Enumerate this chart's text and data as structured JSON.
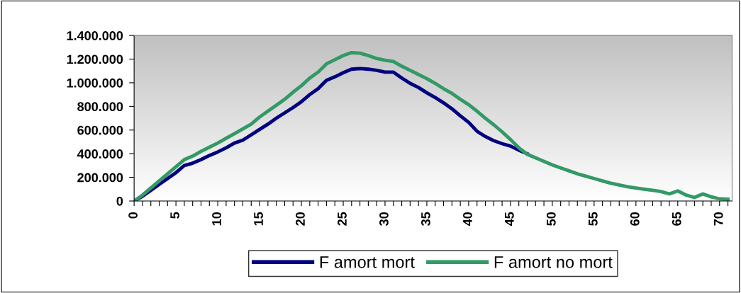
{
  "chart_data": {
    "type": "line",
    "x": [
      0,
      1,
      2,
      3,
      4,
      5,
      6,
      7,
      8,
      9,
      10,
      11,
      12,
      13,
      14,
      15,
      16,
      17,
      18,
      19,
      20,
      21,
      22,
      23,
      24,
      25,
      26,
      27,
      28,
      29,
      30,
      31,
      32,
      33,
      34,
      35,
      36,
      37,
      38,
      39,
      40,
      41,
      42,
      43,
      44,
      45,
      46,
      47,
      48,
      49,
      50,
      51,
      52,
      53,
      54,
      55,
      56,
      57,
      58,
      59,
      60,
      61,
      62,
      63,
      64,
      65,
      66,
      67,
      68,
      69,
      70,
      71
    ],
    "series": [
      {
        "name": "F amort mort",
        "color": "#000080",
        "values": [
          0,
          40000,
          90000,
          140000,
          190000,
          240000,
          300000,
          320000,
          350000,
          385000,
          415000,
          450000,
          490000,
          515000,
          560000,
          605000,
          650000,
          700000,
          745000,
          790000,
          840000,
          900000,
          950000,
          1020000,
          1050000,
          1085000,
          1115000,
          1120000,
          1115000,
          1105000,
          1090000,
          1090000,
          1040000,
          995000,
          960000,
          915000,
          875000,
          830000,
          780000,
          720000,
          665000,
          590000,
          545000,
          510000,
          485000,
          465000,
          430000,
          400000,
          null,
          null,
          null,
          null,
          null,
          null,
          null,
          null,
          null,
          null,
          null,
          null,
          null,
          null,
          null,
          null,
          null,
          null,
          null,
          null,
          null,
          null,
          null,
          null
        ]
      },
      {
        "name": "F amort no mort",
        "color": "#339966",
        "values": [
          0,
          50000,
          110000,
          170000,
          230000,
          290000,
          350000,
          380000,
          420000,
          455000,
          490000,
          530000,
          570000,
          610000,
          650000,
          710000,
          760000,
          810000,
          860000,
          920000,
          975000,
          1040000,
          1090000,
          1160000,
          1195000,
          1230000,
          1255000,
          1250000,
          1230000,
          1205000,
          1190000,
          1180000,
          1140000,
          1105000,
          1070000,
          1035000,
          995000,
          950000,
          910000,
          860000,
          815000,
          760000,
          700000,
          645000,
          585000,
          520000,
          450000,
          395000,
          365000,
          335000,
          305000,
          280000,
          255000,
          230000,
          210000,
          190000,
          170000,
          150000,
          135000,
          120000,
          110000,
          100000,
          90000,
          80000,
          60000,
          85000,
          50000,
          30000,
          60000,
          35000,
          18000,
          15000
        ]
      }
    ],
    "xlim": [
      0,
      71.5
    ],
    "xticks": [
      0,
      {
        "value": 1,
        "label": null
      },
      {
        "value": 2,
        "label": null
      },
      {
        "value": 3,
        "label": null
      },
      {
        "value": 4,
        "label": null
      },
      5,
      {
        "value": 6,
        "label": null
      },
      {
        "value": 7,
        "label": null
      },
      {
        "value": 8,
        "label": null
      },
      {
        "value": 9,
        "label": null
      },
      10,
      {
        "value": 11,
        "label": null
      },
      {
        "value": 12,
        "label": null
      },
      {
        "value": 13,
        "label": null
      },
      {
        "value": 14,
        "label": null
      },
      15,
      {
        "value": 16,
        "label": null
      },
      {
        "value": 17,
        "label": null
      },
      {
        "value": 18,
        "label": null
      },
      {
        "value": 19,
        "label": null
      },
      20,
      {
        "value": 21,
        "label": null
      },
      {
        "value": 22,
        "label": null
      },
      {
        "value": 23,
        "label": null
      },
      {
        "value": 24,
        "label": null
      },
      25,
      {
        "value": 26,
        "label": null
      },
      {
        "value": 27,
        "label": null
      },
      {
        "value": 28,
        "label": null
      },
      {
        "value": 29,
        "label": null
      },
      30,
      {
        "value": 31,
        "label": null
      },
      {
        "value": 32,
        "label": null
      },
      {
        "value": 33,
        "label": null
      },
      {
        "value": 34,
        "label": null
      },
      35,
      {
        "value": 36,
        "label": null
      },
      {
        "value": 37,
        "label": null
      },
      {
        "value": 38,
        "label": null
      },
      {
        "value": 39,
        "label": null
      },
      40,
      {
        "value": 41,
        "label": null
      },
      {
        "value": 42,
        "label": null
      },
      {
        "value": 43,
        "label": null
      },
      {
        "value": 44,
        "label": null
      },
      45,
      {
        "value": 46,
        "label": null
      },
      {
        "value": 47,
        "label": null
      },
      {
        "value": 48,
        "label": null
      },
      {
        "value": 49,
        "label": null
      },
      50,
      {
        "value": 51,
        "label": null
      },
      {
        "value": 52,
        "label": null
      },
      {
        "value": 53,
        "label": null
      },
      {
        "value": 54,
        "label": null
      },
      55,
      {
        "value": 56,
        "label": null
      },
      {
        "value": 57,
        "label": null
      },
      {
        "value": 58,
        "label": null
      },
      {
        "value": 59,
        "label": null
      },
      60,
      {
        "value": 61,
        "label": null
      },
      {
        "value": 62,
        "label": null
      },
      {
        "value": 63,
        "label": null
      },
      {
        "value": 64,
        "label": null
      },
      65,
      {
        "value": 66,
        "label": null
      },
      {
        "value": 67,
        "label": null
      },
      {
        "value": 68,
        "label": null
      },
      {
        "value": 69,
        "label": null
      },
      70,
      {
        "value": 71,
        "label": null
      }
    ],
    "ylim": [
      0,
      1400000
    ],
    "yticks": [
      0,
      {
        "value": 200000,
        "label": "200.000"
      },
      {
        "value": 400000,
        "label": "400.000"
      },
      {
        "value": 600000,
        "label": "600.000"
      },
      {
        "value": 800000,
        "label": "800.000"
      },
      {
        "value": 1000000,
        "label": "1.000.000"
      },
      {
        "value": 1200000,
        "label": "1.200.000"
      },
      {
        "value": 1400000,
        "label": "1.400.000"
      }
    ],
    "grid": false,
    "legend": "bottom",
    "marker": "none",
    "line_style": "solid"
  }
}
